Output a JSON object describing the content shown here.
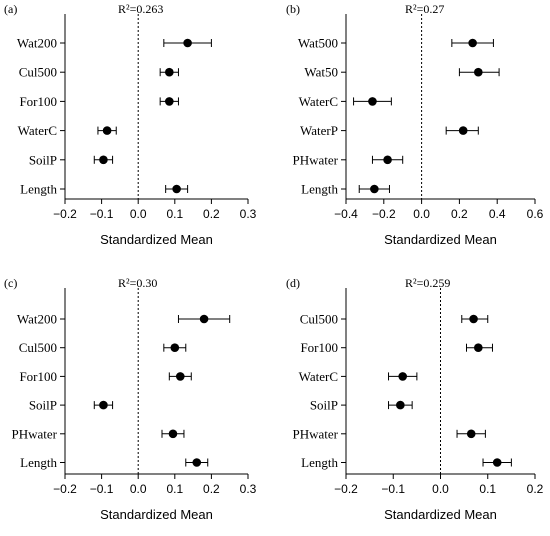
{
  "chart_data": [
    {
      "type": "scatter",
      "panel_label": "(a)",
      "r2_label": "R²=0.263",
      "xlabel": "Standardized Mean",
      "xlim": [
        -0.2,
        0.3
      ],
      "xticks": [
        "−0.2",
        "−0.1",
        "0.0",
        "0.1",
        "0.2",
        "0.3"
      ],
      "xtick_values": [
        -0.2,
        -0.1,
        0.0,
        0.1,
        0.2,
        0.3
      ],
      "reference_line_x": 0,
      "categories": [
        "Wat200",
        "Cul500",
        "For100",
        "WaterC",
        "SoilP",
        "Length"
      ],
      "values": [
        0.135,
        0.085,
        0.085,
        -0.085,
        -0.095,
        0.105
      ],
      "ci_low": [
        0.07,
        0.06,
        0.06,
        -0.11,
        -0.12,
        0.075
      ],
      "ci_high": [
        0.2,
        0.11,
        0.11,
        -0.06,
        -0.07,
        0.135
      ]
    },
    {
      "type": "scatter",
      "panel_label": "(b)",
      "r2_label": "R²=0.27",
      "xlabel": "Standardized Mean",
      "xlim": [
        -0.4,
        0.6
      ],
      "xticks": [
        "−0.4",
        "−0.2",
        "0.0",
        "0.2",
        "0.4",
        "0.6"
      ],
      "xtick_values": [
        -0.4,
        -0.2,
        0.0,
        0.2,
        0.4,
        0.6
      ],
      "reference_line_x": 0,
      "categories": [
        "Wat500",
        "Wat50",
        "WaterC",
        "WaterP",
        "PHwater",
        "Length"
      ],
      "values": [
        0.27,
        0.3,
        -0.26,
        0.22,
        -0.18,
        -0.25
      ],
      "ci_low": [
        0.16,
        0.2,
        -0.36,
        0.13,
        -0.26,
        -0.33
      ],
      "ci_high": [
        0.38,
        0.41,
        -0.16,
        0.3,
        -0.1,
        -0.17
      ]
    },
    {
      "type": "scatter",
      "panel_label": "(c)",
      "r2_label": "R²=0.30",
      "xlabel": "Standardized Mean",
      "xlim": [
        -0.2,
        0.3
      ],
      "xticks": [
        "−0.2",
        "−0.1",
        "0.0",
        "0.1",
        "0.2",
        "0.3"
      ],
      "xtick_values": [
        -0.2,
        -0.1,
        0.0,
        0.1,
        0.2,
        0.3
      ],
      "reference_line_x": 0,
      "categories": [
        "Wat200",
        "Cul500",
        "For100",
        "SoilP",
        "PHwater",
        "Length"
      ],
      "values": [
        0.18,
        0.1,
        0.115,
        -0.095,
        0.095,
        0.16
      ],
      "ci_low": [
        0.11,
        0.07,
        0.085,
        -0.12,
        0.065,
        0.13
      ],
      "ci_high": [
        0.25,
        0.13,
        0.145,
        -0.07,
        0.125,
        0.19
      ]
    },
    {
      "type": "scatter",
      "panel_label": "(d)",
      "r2_label": "R²=0.259",
      "xlabel": "Standardized Mean",
      "xlim": [
        -0.2,
        0.2
      ],
      "xticks": [
        "−0.2",
        "−0.1",
        "0.0",
        "0.1",
        "0.2"
      ],
      "xtick_values": [
        -0.2,
        -0.1,
        0.0,
        0.1,
        0.2
      ],
      "reference_line_x": 0,
      "categories": [
        "Cul500",
        "For100",
        "WaterC",
        "SoilP",
        "PHwater",
        "Length"
      ],
      "values": [
        0.07,
        0.08,
        -0.08,
        -0.085,
        0.065,
        0.12
      ],
      "ci_low": [
        0.045,
        0.055,
        -0.11,
        -0.11,
        0.035,
        0.09
      ],
      "ci_high": [
        0.1,
        0.11,
        -0.05,
        -0.06,
        0.095,
        0.15
      ]
    }
  ]
}
